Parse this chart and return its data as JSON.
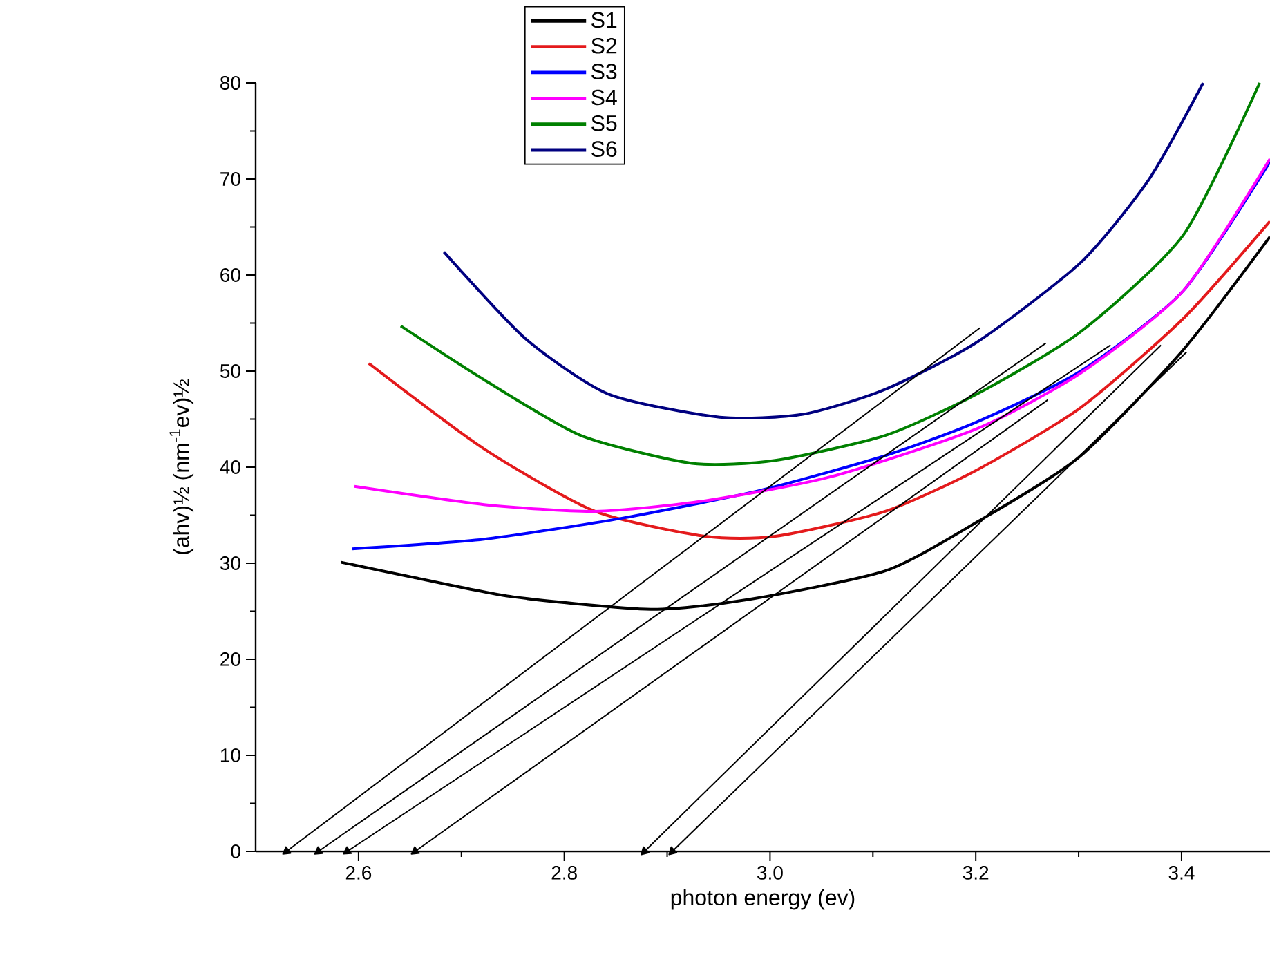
{
  "chart_data": {
    "type": "line",
    "xlabel": "photon energy (ev)",
    "ylabel": "(ahv)½ (nm$^{-1}$ev)½",
    "xlim": [
      2.5,
      3.486
    ],
    "ylim": [
      0,
      80
    ],
    "xticks": [
      2.6,
      2.8,
      {
        "value": 3,
        "label": "3.0"
      },
      3.2,
      3.4
    ],
    "yticks": [
      0,
      10,
      20,
      30,
      40,
      50,
      60,
      70,
      80
    ],
    "legend": "top",
    "grid": false,
    "marker": "none",
    "series": [
      {
        "name": "S1",
        "color": "#000000",
        "x": [
          2.583,
          2.65,
          2.75,
          2.884,
          2.978,
          3.112,
          3.203,
          3.3,
          3.4,
          3.486
        ],
        "values": [
          30.1,
          28.6,
          26.5,
          25.2,
          26.2,
          29.2,
          34.4,
          41,
          52,
          64
        ]
      },
      {
        "name": "S2",
        "color": "#e41a1c",
        "x": [
          2.61,
          2.722,
          2.83,
          2.937,
          3.005,
          3.112,
          3.201,
          3.302,
          3.402,
          3.486
        ],
        "values": [
          50.8,
          41.9,
          35.4,
          32.8,
          32.8,
          35.4,
          39.7,
          46.2,
          55.5,
          65.6
        ]
      },
      {
        "name": "S3",
        "color": "#0000ff",
        "x": [
          2.594,
          2.722,
          2.857,
          2.991,
          3.112,
          3.201,
          3.302,
          3.402,
          3.486
        ],
        "values": [
          31.5,
          32.5,
          34.7,
          37.6,
          41.2,
          44.7,
          50,
          58.4,
          71.8
        ]
      },
      {
        "name": "S4",
        "color": "#ff00ff",
        "x": [
          2.596,
          2.722,
          2.83,
          2.937,
          3.059,
          3.201,
          3.302,
          3.402,
          3.486
        ],
        "values": [
          38,
          36.1,
          35.4,
          36.5,
          39,
          44,
          49.8,
          58.4,
          72.1
        ]
      },
      {
        "name": "S5",
        "color": "#008000",
        "x": [
          2.641,
          2.722,
          2.816,
          2.924,
          3.005,
          3.112,
          3.201,
          3.302,
          3.402,
          3.476
        ],
        "values": [
          54.7,
          49.1,
          43.3,
          40.4,
          40.7,
          43.3,
          47.6,
          54.1,
          64.2,
          80
        ]
      },
      {
        "name": "S6",
        "color": "#000080",
        "x": [
          2.683,
          2.762,
          2.843,
          2.951,
          3.032,
          3.112,
          3.201,
          3.302,
          3.368,
          3.421
        ],
        "values": [
          62.4,
          53.4,
          47.6,
          45.2,
          45.5,
          48.1,
          53,
          61.3,
          69.9,
          80
        ]
      },
      {
        "color": "#000000",
        "marker": "triangle",
        "x": [
          3.204,
          2.53
        ],
        "values": [
          54.5,
          0
        ]
      },
      {
        "color": "#000000",
        "marker": "triangle",
        "x": [
          3.268,
          2.561
        ],
        "values": [
          52.9,
          0
        ]
      },
      {
        "color": "#000000",
        "marker": "triangle",
        "x": [
          3.331,
          2.589
        ],
        "values": [
          52.7,
          0
        ]
      },
      {
        "color": "#000000",
        "marker": "triangle",
        "x": [
          3.27,
          2.655
        ],
        "values": [
          47,
          0
        ]
      },
      {
        "color": "#000000",
        "marker": "triangle",
        "x": [
          3.38,
          2.878
        ],
        "values": [
          52.7,
          0
        ]
      },
      {
        "color": "#000000",
        "marker": "triangle",
        "x": [
          3.405,
          2.905
        ],
        "values": [
          52,
          0
        ]
      }
    ]
  }
}
